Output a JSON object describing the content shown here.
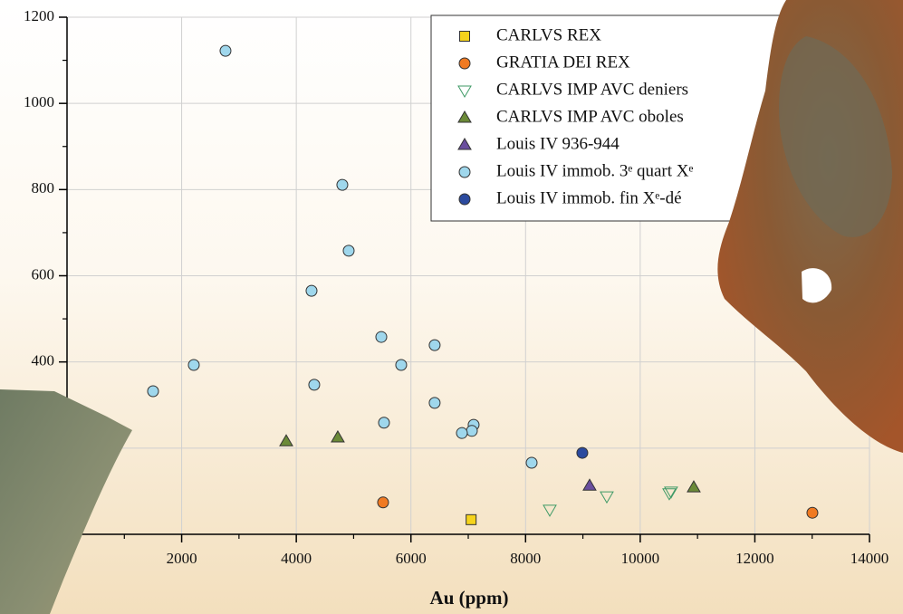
{
  "chart_data": {
    "type": "scatter",
    "x_label": "Au (ppm)",
    "xlim": [
      0,
      14000
    ],
    "xticks": [
      0,
      2000,
      4000,
      6000,
      8000,
      10000,
      12000,
      14000
    ],
    "ylim": [
      0,
      1200
    ],
    "yticks": [
      0,
      200,
      400,
      600,
      800,
      1000,
      1200
    ],
    "grid": true,
    "legend": "upper right",
    "series": [
      {
        "name": "CARLVS REX",
        "color": "#f5d31c",
        "marker": "square",
        "filled": true,
        "x": [
          7050
        ],
        "values": [
          34
        ]
      },
      {
        "name": "GRATIA DEI REX",
        "color": "#f07a22",
        "marker": "circle",
        "filled": true,
        "x": [
          5514,
          13004
        ],
        "values": [
          74,
          50
        ]
      },
      {
        "name": "CARLVS IMP AVC deniers",
        "color": "#3f9a66",
        "marker": "triangle-down",
        "filled": false,
        "x": [
          8422,
          9417,
          10507,
          10538
        ],
        "values": [
          57,
          88,
          95,
          99
        ]
      },
      {
        "name": "CARLVS IMP AVC oboles",
        "color": "#6b8a38",
        "marker": "triangle-up",
        "filled": true,
        "x": [
          3824,
          4724,
          10934
        ],
        "values": [
          216,
          225,
          109
        ]
      },
      {
        "name": "Louis IV 936-944",
        "color": "#6a4e9e",
        "marker": "triangle-up",
        "filled": true,
        "x": [
          9117
        ],
        "values": [
          113
        ]
      },
      {
        "name": "Louis IV immob. 3ᵉ quart Xᵉ",
        "color": "#9fd7ec",
        "marker": "circle",
        "filled": true,
        "x": [
          2765,
          4803,
          4914,
          4266,
          5483,
          6414,
          2212,
          5830,
          1501,
          4313,
          6414,
          5530,
          7094,
          7063,
          6889,
          8106
        ],
        "values": [
          1122,
          811,
          658,
          565,
          458,
          439,
          393,
          393,
          332,
          347,
          305,
          259,
          254,
          240,
          235,
          166
        ]
      },
      {
        "name": "Louis IV immob. fin Xᵉ-dé",
        "color": "#2b4a9e",
        "marker": "circle",
        "filled": true,
        "x": [
          8990
        ],
        "values": [
          189
        ]
      }
    ]
  }
}
